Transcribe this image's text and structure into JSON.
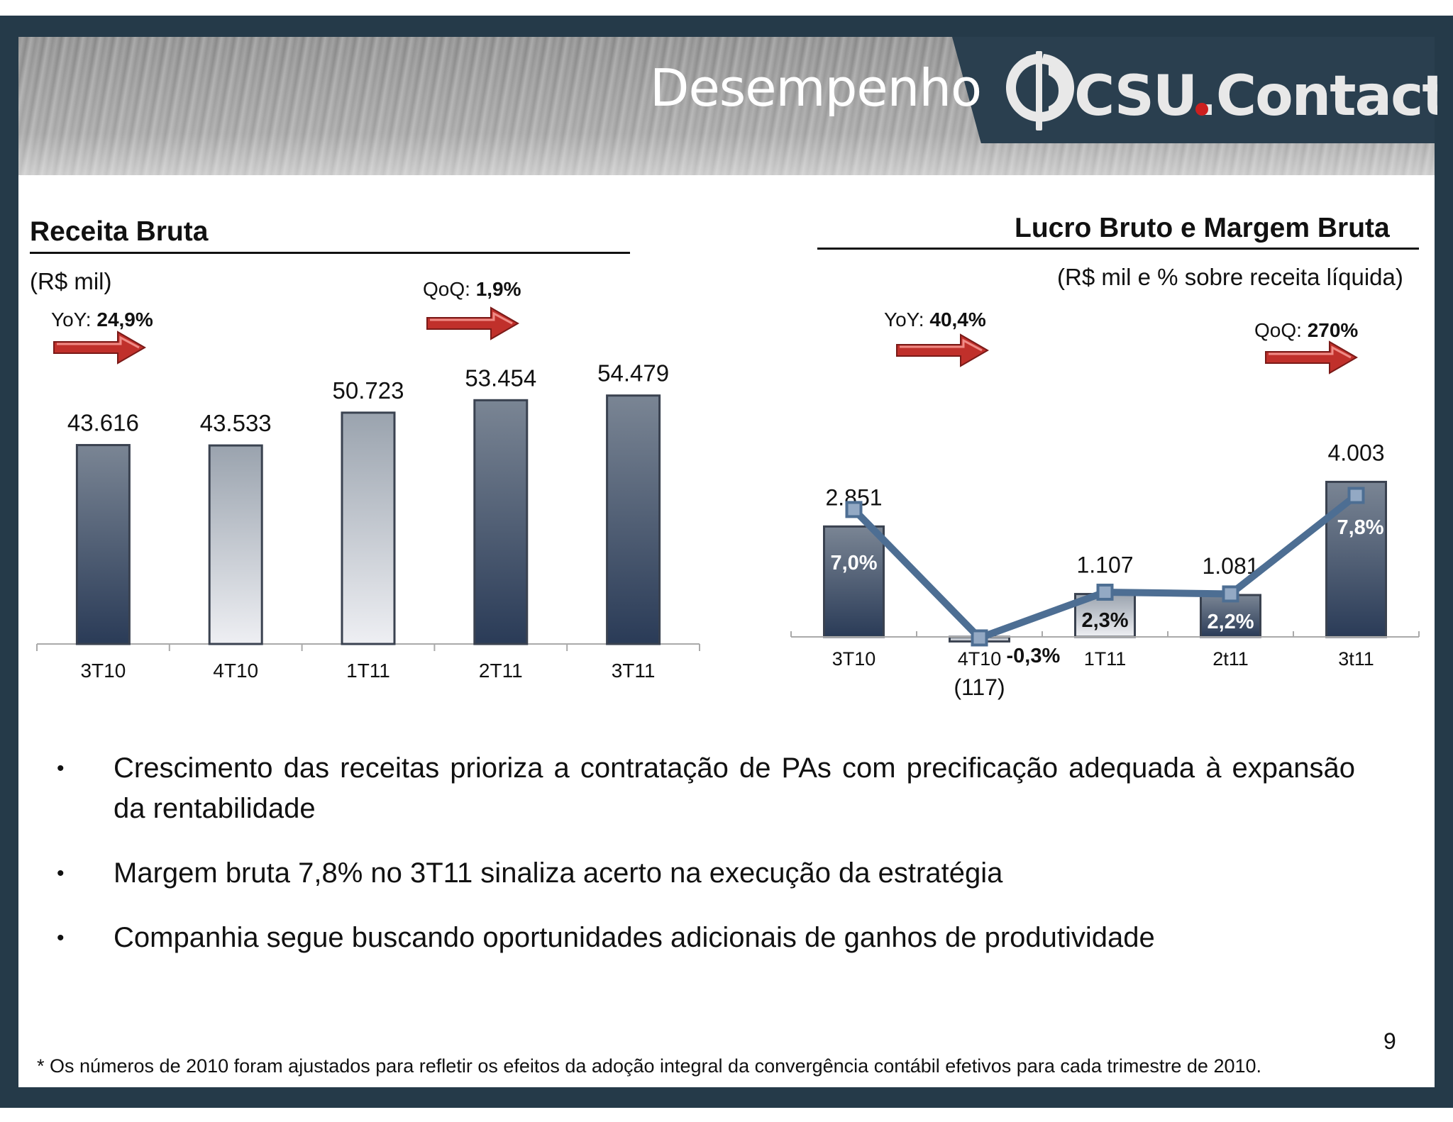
{
  "header": {
    "title": "Desempenho",
    "logo_text": "CSU.Contact"
  },
  "left": {
    "title": "Receita Bruta",
    "unit": "(R$ mil)",
    "yoy_label": "YoY:",
    "yoy_value": "24,9%",
    "qoq_label": "QoQ:",
    "qoq_value": "1,9%"
  },
  "right": {
    "title": "Lucro Bruto e Margem Bruta",
    "unit": "(R$ mil e % sobre receita líquida)",
    "yoy_label": "YoY:",
    "yoy_value": "40,4%",
    "qoq_label": "QoQ:",
    "qoq_value": "270%"
  },
  "chart_data": [
    {
      "type": "bar",
      "title": "Receita Bruta",
      "ylabel": "(R$ mil)",
      "categories": [
        "3T10",
        "4T10",
        "1T11",
        "2T11",
        "3T11"
      ],
      "values": [
        43616,
        43533,
        50723,
        53454,
        54479
      ],
      "value_labels": [
        "43.616",
        "43.533",
        "50.723",
        "53.454",
        "54.479"
      ],
      "bar_styles": [
        "dark",
        "light",
        "light",
        "dark",
        "dark"
      ]
    },
    {
      "type": "bar",
      "title": "Lucro Bruto e Margem Bruta",
      "ylabel": "(R$ mil e % sobre receita líquida)",
      "categories": [
        "3T10",
        "4T10",
        "1T11",
        "2t11",
        "3t11"
      ],
      "values": [
        2851,
        -117,
        1107,
        1081,
        4003
      ],
      "value_labels": [
        "2.851",
        "(117)",
        "1.107",
        "1.081",
        "4.003"
      ],
      "bar_styles": [
        "dark",
        "light",
        "light",
        "dark",
        "dark"
      ],
      "line_series": {
        "values": [
          7.0,
          -0.3,
          2.3,
          2.2,
          7.8
        ],
        "labels": [
          "7,0%",
          "-0,3%",
          "2,3%",
          "2,2%",
          "7,8%"
        ],
        "color": "#4d6e93"
      }
    }
  ],
  "bullets": [
    "Crescimento das receitas prioriza a contratação de PAs com precificação adequada à expansão da rentabilidade",
    "Margem bruta 7,8% no 3T11 sinaliza acerto na execução da estratégia",
    "Companhia segue buscando oportunidades adicionais de ganhos de produtividade"
  ],
  "bullet_symbol": "•",
  "footnote": "* Os números de 2010 foram ajustados para refletir os efeitos da adoção integral da convergência contábil efetivos para cada trimestre de 2010.",
  "page_number": "9"
}
